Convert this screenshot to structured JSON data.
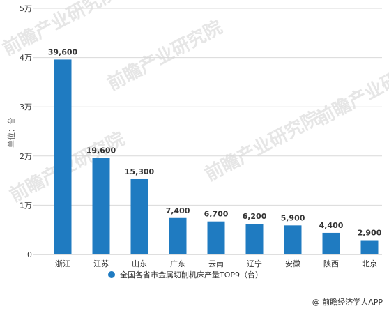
{
  "chart_data": {
    "type": "bar",
    "categories": [
      "浙江",
      "江苏",
      "山东",
      "广东",
      "云南",
      "辽宁",
      "安徽",
      "陕西",
      "北京"
    ],
    "values": [
      39600,
      19600,
      15300,
      7400,
      6700,
      6200,
      5900,
      4400,
      2900
    ],
    "value_labels": [
      "39,600",
      "19,600",
      "15,300",
      "7,400",
      "6,700",
      "6,200",
      "5,900",
      "4,400",
      "2,900"
    ],
    "ylim": [
      0,
      50000
    ],
    "yticks": [
      0,
      10000,
      20000,
      30000,
      40000,
      50000
    ],
    "ytick_labels": [
      "0",
      "1万",
      "2万",
      "3万",
      "4万",
      "5万"
    ],
    "ylabel": "单位：台",
    "xlabel": "",
    "title": "",
    "grid": true,
    "bar_color": "#1f7bc1",
    "legend": {
      "label": "全国各省市金属切削机床产量TOP9（台）",
      "placement": "bottom-center",
      "marker_color": "#1f7bc1"
    }
  },
  "source": "@ 前瞻经济学人APP",
  "watermarks": [
    "前瞻产业研究院",
    "前瞻产业研究院",
    "前瞻产业研究院",
    "前瞻产业研究院"
  ]
}
